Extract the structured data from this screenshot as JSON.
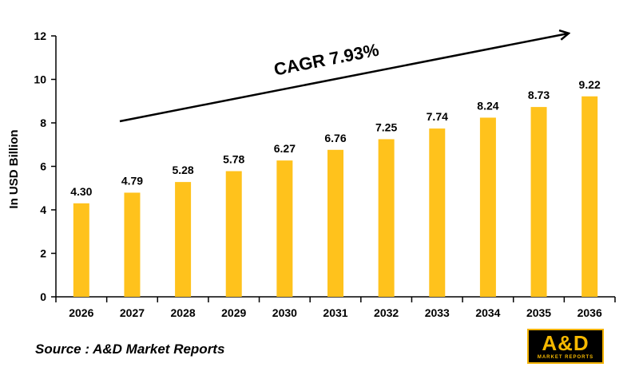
{
  "chart_data": {
    "type": "bar",
    "categories": [
      "2026",
      "2027",
      "2028",
      "2029",
      "2030",
      "2031",
      "2032",
      "2033",
      "2034",
      "2035",
      "2036"
    ],
    "values": [
      4.3,
      4.79,
      5.28,
      5.78,
      6.27,
      6.76,
      7.25,
      7.74,
      8.24,
      8.73,
      9.22
    ],
    "value_labels": [
      "4.30",
      "4.79",
      "5.28",
      "5.78",
      "6.27",
      "6.76",
      "7.25",
      "7.74",
      "8.24",
      "8.73",
      "9.22"
    ],
    "ylabel": "In USD Billion",
    "ylim": [
      0,
      12
    ],
    "yticks": [
      "0",
      "2",
      "4",
      "6",
      "8",
      "10",
      "12"
    ],
    "grid": false,
    "bar_color": "#ffc21c",
    "annotation": "CAGR 7.93%"
  },
  "source": "Source : A&D Market Reports",
  "logo": {
    "main": "A&D",
    "sub": "MARKET REPORTS"
  }
}
